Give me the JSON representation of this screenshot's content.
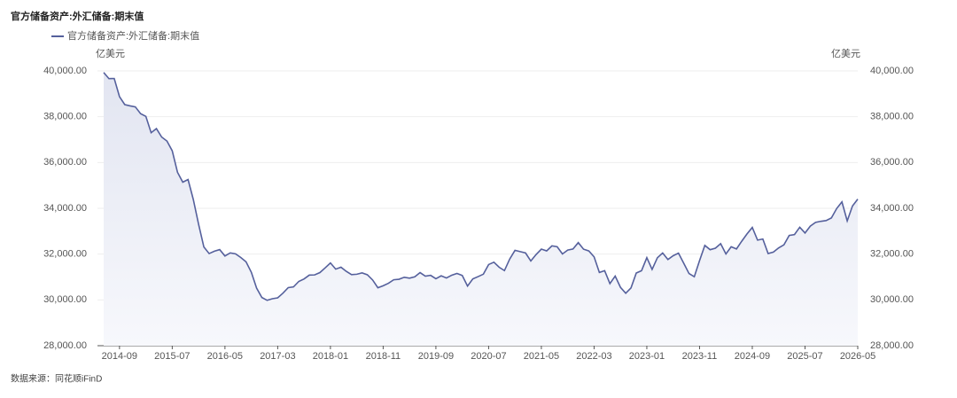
{
  "chart_data": {
    "type": "line",
    "title": "官方储备资产:外汇储备:期末值",
    "y_unit": "亿美元",
    "source": "数据来源：同花顺iFinD",
    "x": [
      "2014-06",
      "2014-07",
      "2014-08",
      "2014-09",
      "2014-10",
      "2014-11",
      "2014-12",
      "2015-01",
      "2015-02",
      "2015-03",
      "2015-04",
      "2015-05",
      "2015-06",
      "2015-07",
      "2015-08",
      "2015-09",
      "2015-10",
      "2015-11",
      "2015-12",
      "2016-01",
      "2016-02",
      "2016-03",
      "2016-04",
      "2016-05",
      "2016-06",
      "2016-07",
      "2016-08",
      "2016-09",
      "2016-10",
      "2016-11",
      "2016-12",
      "2017-01",
      "2017-02",
      "2017-03",
      "2017-04",
      "2017-05",
      "2017-06",
      "2017-07",
      "2017-08",
      "2017-09",
      "2017-10",
      "2017-11",
      "2017-12",
      "2018-01",
      "2018-02",
      "2018-03",
      "2018-04",
      "2018-05",
      "2018-06",
      "2018-07",
      "2018-08",
      "2018-09",
      "2018-10",
      "2018-11",
      "2018-12",
      "2019-01",
      "2019-02",
      "2019-03",
      "2019-04",
      "2019-05",
      "2019-06",
      "2019-07",
      "2019-08",
      "2019-09",
      "2019-10",
      "2019-11",
      "2019-12",
      "2020-01",
      "2020-02",
      "2020-03",
      "2020-04",
      "2020-05",
      "2020-06",
      "2020-07",
      "2020-08",
      "2020-09",
      "2020-10",
      "2020-11",
      "2020-12",
      "2021-01",
      "2021-02",
      "2021-03",
      "2021-04",
      "2021-05",
      "2021-06",
      "2021-07",
      "2021-08",
      "2021-09",
      "2021-10",
      "2021-11",
      "2021-12",
      "2022-01",
      "2022-02",
      "2022-03",
      "2022-04",
      "2022-05",
      "2022-06",
      "2022-07",
      "2022-08",
      "2022-09",
      "2022-10",
      "2022-11",
      "2022-12",
      "2023-01",
      "2023-02",
      "2023-03",
      "2023-04",
      "2023-05",
      "2023-06",
      "2023-07",
      "2023-08",
      "2023-09",
      "2023-10",
      "2023-11",
      "2023-12",
      "2024-01",
      "2024-02",
      "2024-03",
      "2024-04",
      "2024-05",
      "2024-06",
      "2024-07",
      "2024-08",
      "2024-09",
      "2024-10",
      "2024-11",
      "2024-12",
      "2025-01",
      "2025-02",
      "2025-03",
      "2025-04",
      "2025-05",
      "2025-06",
      "2025-07",
      "2025-08",
      "2025-09",
      "2025-10",
      "2025-11",
      "2025-12",
      "2026-01",
      "2026-02",
      "2026-03",
      "2026-04",
      "2026-05"
    ],
    "series": [
      {
        "name": "官方储备资产:外汇储备:期末值",
        "color": "#55609c",
        "values": [
          39932,
          39662,
          39668,
          38877,
          38529,
          38474,
          38430,
          38134,
          38015,
          37301,
          37481,
          37111,
          36938,
          36513,
          35574,
          35141,
          35255,
          34383,
          33304,
          32309,
          32023,
          32126,
          32197,
          31917,
          32052,
          32011,
          31851,
          31664,
          31206,
          30516,
          30105,
          29982,
          30051,
          30091,
          30295,
          30536,
          30568,
          30807,
          30915,
          31085,
          31092,
          31193,
          31399,
          31615,
          31345,
          31428,
          31249,
          31106,
          31121,
          31179,
          31097,
          30870,
          30531,
          30617,
          30727,
          30879,
          30902,
          30988,
          30950,
          31010,
          31192,
          31037,
          31072,
          30924,
          31052,
          30956,
          31079,
          31155,
          31067,
          30606,
          30915,
          31017,
          31123,
          31544,
          31646,
          31426,
          31280,
          31785,
          32165,
          32107,
          32050,
          31700,
          31982,
          32218,
          32140,
          32359,
          32321,
          32006,
          32176,
          32224,
          32502,
          32216,
          32138,
          31880,
          31197,
          31278,
          30713,
          31041,
          30549,
          30290,
          30524,
          31175,
          31277,
          31845,
          31331,
          31839,
          32048,
          31765,
          31929,
          32043,
          31601,
          31151,
          31012,
          31718,
          32380,
          32193,
          32258,
          32457,
          32008,
          32320,
          32224,
          32564,
          32882,
          33164,
          32611,
          32659,
          32024,
          32090,
          32272,
          32407,
          32817,
          32853,
          33174,
          32922,
          33222,
          33387,
          33433,
          33464,
          33579,
          33990,
          34280,
          33450,
          34100,
          34400
        ]
      }
    ],
    "ylim": [
      28000,
      40000
    ],
    "yticks": [
      {
        "value": 28000,
        "label": "28,000.00"
      },
      {
        "value": 30000,
        "label": "30,000.00"
      },
      {
        "value": 32000,
        "label": "32,000.00"
      },
      {
        "value": 34000,
        "label": "34,000.00"
      },
      {
        "value": 36000,
        "label": "36,000.00"
      },
      {
        "value": 38000,
        "label": "38,000.00"
      },
      {
        "value": 40000,
        "label": "40,000.00"
      }
    ],
    "grid": true
  }
}
